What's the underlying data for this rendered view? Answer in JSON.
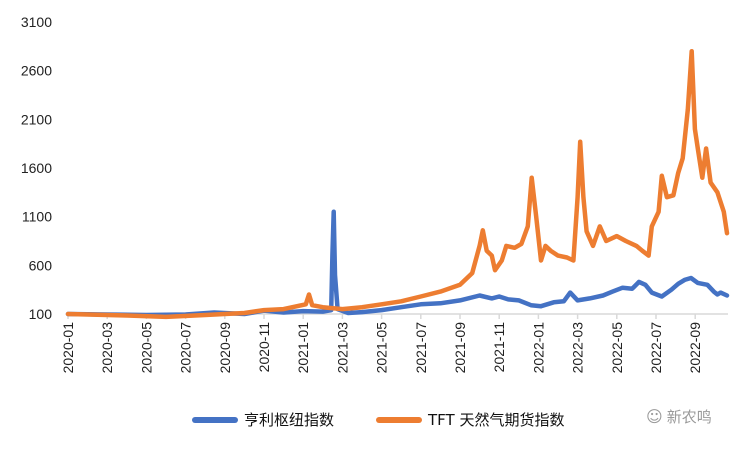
{
  "chart_data": {
    "type": "line",
    "title": "",
    "xlabel": "",
    "ylabel": "",
    "ylim": [
      100,
      3100
    ],
    "yticks": [
      "100",
      "600",
      "1100",
      "1600",
      "2100",
      "2600",
      "3100"
    ],
    "xticks": [
      "2020-01",
      "2020-03",
      "2020-05",
      "2020-07",
      "2020-09",
      "2020-11",
      "2021-01",
      "2021-03",
      "2021-05",
      "2021-07",
      "2021-09",
      "2021-11",
      "2022-01",
      "2022-03",
      "2022-05",
      "2022-07",
      "2022-09"
    ],
    "xlim": [
      "2020-01-01",
      "2022-10-20"
    ],
    "grid": false,
    "legend": "bottom",
    "series": [
      {
        "name": "亨利枢纽指数",
        "color": "#4472C4",
        "points": [
          [
            "2020-01-01",
            100
          ],
          [
            "2020-03-01",
            95
          ],
          [
            "2020-05-01",
            90
          ],
          [
            "2020-07-01",
            95
          ],
          [
            "2020-08-15",
            115
          ],
          [
            "2020-10-01",
            100
          ],
          [
            "2020-11-01",
            135
          ],
          [
            "2020-12-01",
            115
          ],
          [
            "2021-01-01",
            130
          ],
          [
            "2021-02-01",
            125
          ],
          [
            "2021-02-14",
            140
          ],
          [
            "2021-02-16",
            700
          ],
          [
            "2021-02-18",
            1150
          ],
          [
            "2021-02-20",
            500
          ],
          [
            "2021-02-24",
            150
          ],
          [
            "2021-03-10",
            110
          ],
          [
            "2021-04-01",
            120
          ],
          [
            "2021-05-01",
            140
          ],
          [
            "2021-06-01",
            170
          ],
          [
            "2021-07-01",
            200
          ],
          [
            "2021-08-01",
            210
          ],
          [
            "2021-09-01",
            240
          ],
          [
            "2021-10-01",
            290
          ],
          [
            "2021-10-20",
            260
          ],
          [
            "2021-11-01",
            280
          ],
          [
            "2021-11-15",
            250
          ],
          [
            "2021-12-01",
            240
          ],
          [
            "2021-12-20",
            190
          ],
          [
            "2022-01-05",
            180
          ],
          [
            "2022-01-25",
            220
          ],
          [
            "2022-02-10",
            230
          ],
          [
            "2022-02-20",
            320
          ],
          [
            "2022-03-01",
            240
          ],
          [
            "2022-03-20",
            260
          ],
          [
            "2022-04-10",
            290
          ],
          [
            "2022-04-25",
            330
          ],
          [
            "2022-05-10",
            370
          ],
          [
            "2022-05-25",
            360
          ],
          [
            "2022-06-05",
            430
          ],
          [
            "2022-06-15",
            400
          ],
          [
            "2022-06-25",
            320
          ],
          [
            "2022-07-10",
            280
          ],
          [
            "2022-07-25",
            350
          ],
          [
            "2022-08-05",
            410
          ],
          [
            "2022-08-15",
            450
          ],
          [
            "2022-08-25",
            470
          ],
          [
            "2022-09-05",
            420
          ],
          [
            "2022-09-20",
            400
          ],
          [
            "2022-09-30",
            330
          ],
          [
            "2022-10-05",
            300
          ],
          [
            "2022-10-10",
            320
          ],
          [
            "2022-10-20",
            290
          ]
        ]
      },
      {
        "name": "TFT 天然气期货指数",
        "color": "#ED7D31",
        "points": [
          [
            "2020-01-01",
            100
          ],
          [
            "2020-02-01",
            95
          ],
          [
            "2020-04-01",
            85
          ],
          [
            "2020-06-01",
            70
          ],
          [
            "2020-08-01",
            90
          ],
          [
            "2020-10-01",
            110
          ],
          [
            "2020-11-01",
            140
          ],
          [
            "2020-12-01",
            150
          ],
          [
            "2021-01-05",
            200
          ],
          [
            "2021-01-10",
            300
          ],
          [
            "2021-01-15",
            190
          ],
          [
            "2021-02-01",
            170
          ],
          [
            "2021-03-01",
            150
          ],
          [
            "2021-04-01",
            170
          ],
          [
            "2021-05-01",
            200
          ],
          [
            "2021-06-01",
            230
          ],
          [
            "2021-07-01",
            280
          ],
          [
            "2021-08-01",
            330
          ],
          [
            "2021-09-01",
            400
          ],
          [
            "2021-09-20",
            520
          ],
          [
            "2021-10-01",
            800
          ],
          [
            "2021-10-06",
            960
          ],
          [
            "2021-10-12",
            750
          ],
          [
            "2021-10-20",
            700
          ],
          [
            "2021-10-25",
            550
          ],
          [
            "2021-11-05",
            650
          ],
          [
            "2021-11-12",
            800
          ],
          [
            "2021-11-25",
            780
          ],
          [
            "2021-12-05",
            820
          ],
          [
            "2021-12-15",
            1000
          ],
          [
            "2021-12-21",
            1500
          ],
          [
            "2021-12-28",
            1100
          ],
          [
            "2022-01-05",
            650
          ],
          [
            "2022-01-12",
            800
          ],
          [
            "2022-01-20",
            750
          ],
          [
            "2022-02-01",
            700
          ],
          [
            "2022-02-15",
            680
          ],
          [
            "2022-02-25",
            650
          ],
          [
            "2022-03-01",
            1300
          ],
          [
            "2022-03-05",
            1870
          ],
          [
            "2022-03-10",
            1300
          ],
          [
            "2022-03-15",
            950
          ],
          [
            "2022-03-25",
            800
          ],
          [
            "2022-04-05",
            1000
          ],
          [
            "2022-04-15",
            850
          ],
          [
            "2022-05-01",
            900
          ],
          [
            "2022-05-15",
            850
          ],
          [
            "2022-06-01",
            800
          ],
          [
            "2022-06-10",
            750
          ],
          [
            "2022-06-20",
            700
          ],
          [
            "2022-06-25",
            1000
          ],
          [
            "2022-07-05",
            1150
          ],
          [
            "2022-07-10",
            1520
          ],
          [
            "2022-07-18",
            1300
          ],
          [
            "2022-07-28",
            1320
          ],
          [
            "2022-08-05",
            1550
          ],
          [
            "2022-08-12",
            1700
          ],
          [
            "2022-08-20",
            2200
          ],
          [
            "2022-08-26",
            2800
          ],
          [
            "2022-08-31",
            2000
          ],
          [
            "2022-09-05",
            1800
          ],
          [
            "2022-09-12",
            1500
          ],
          [
            "2022-09-18",
            1800
          ],
          [
            "2022-09-25",
            1450
          ],
          [
            "2022-10-05",
            1350
          ],
          [
            "2022-10-15",
            1150
          ],
          [
            "2022-10-20",
            930
          ]
        ]
      }
    ]
  },
  "watermark": "新农鸣"
}
